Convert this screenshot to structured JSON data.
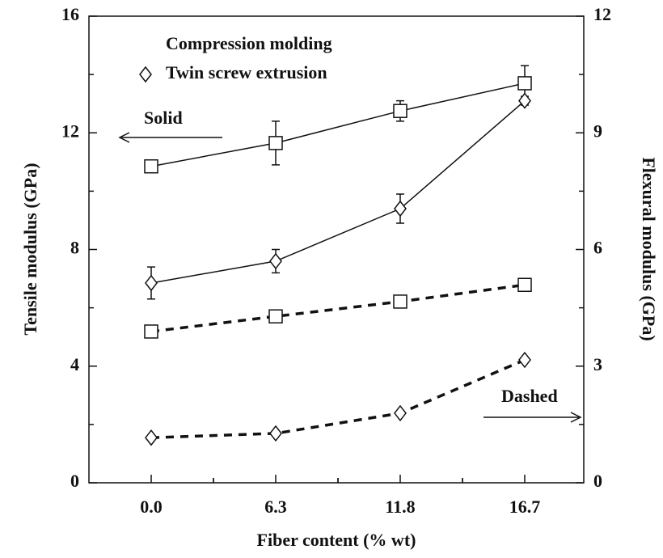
{
  "chart_data": {
    "type": "line",
    "categories": [
      "0.0",
      "6.3",
      "11.8",
      "16.7"
    ],
    "x_label": "Fiber content (% wt)",
    "y_label": "Tensile modulus (GPa)",
    "y2_label": "Flexural modulus (GPa)",
    "ylim": [
      0,
      16
    ],
    "yticks": [
      0,
      4,
      8,
      12,
      16
    ],
    "y2lim": [
      0,
      12
    ],
    "y2ticks": [
      0,
      3,
      6,
      9,
      12
    ],
    "series": [
      {
        "name": "Compression molding",
        "marker": "square",
        "color": "#111111",
        "values": [
          10.85,
          11.65,
          12.75,
          13.7
        ],
        "errors": [
          0.15,
          0.75,
          0.35,
          0.6
        ],
        "flexural_values": [
          3.89,
          4.28,
          4.66,
          5.09
        ]
      },
      {
        "name": "Twin screw extrusion",
        "marker": "diamond",
        "color": "#111111",
        "values": [
          6.85,
          7.6,
          9.4,
          13.1
        ],
        "errors": [
          0.55,
          0.4,
          0.5,
          0.15
        ],
        "flexural_values": [
          1.16,
          1.27,
          1.79,
          3.16
        ]
      }
    ],
    "annotations": [
      "Solid",
      "Dashed"
    ]
  }
}
